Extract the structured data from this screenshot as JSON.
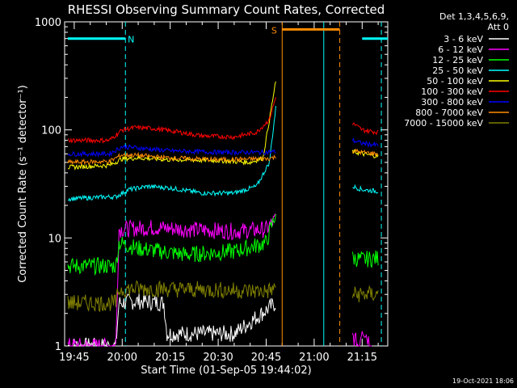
{
  "chart_data": {
    "type": "line",
    "title": "RHESSI Observing Summary Count Rates, Corrected",
    "xlabel": "Start Time (01-Sep-05 19:44:02)",
    "ylabel": "Corrected Count Rate (s⁻¹ detector⁻¹)",
    "yscale": "log",
    "ylim": [
      1,
      1000
    ],
    "xlim": [
      "19:42",
      "21:23"
    ],
    "x_ticks": [
      "19:45",
      "20:00",
      "20:15",
      "20:30",
      "20:45",
      "21:00",
      "21:15"
    ],
    "y_ticks": [
      "1",
      "10",
      "100",
      "1000"
    ],
    "legend_header": [
      "Det 1,3,4,5,6,9,",
      "Att 0"
    ],
    "legend_position": "right",
    "timestamp": "19-Oct-2021 18:06",
    "series": [
      {
        "name": "3 - 6 keV",
        "color": "#ffffff",
        "x": [
          "19:43",
          "19:58",
          "19:59",
          "20:05",
          "20:13",
          "20:14",
          "20:35",
          "20:48"
        ],
        "y": [
          1,
          1,
          2.5,
          2.6,
          2.5,
          1.3,
          1.3,
          2.5
        ]
      },
      {
        "name": "6 - 12 keV",
        "color": "#ff00ff",
        "x": [
          "19:43",
          "19:58",
          "19:59",
          "20:10",
          "20:20",
          "20:35",
          "20:45",
          "20:48",
          "21:14",
          "21:15",
          "21:18"
        ],
        "y": [
          1,
          1,
          12,
          12.5,
          12,
          11.5,
          12,
          15,
          1,
          1.5,
          1
        ]
      },
      {
        "name": "12 - 25 keV",
        "color": "#00ff00",
        "x": [
          "19:43",
          "19:58",
          "19:59",
          "20:05",
          "20:20",
          "20:35",
          "20:45",
          "20:48",
          "21:12",
          "21:15",
          "21:20"
        ],
        "y": [
          5.5,
          5.5,
          9,
          8,
          7,
          7.5,
          9,
          17,
          6.5,
          6.3,
          6.5
        ]
      },
      {
        "name": "25 - 50 keV",
        "color": "#00ffff",
        "x": [
          "19:43",
          "19:56",
          "19:58",
          "20:02",
          "20:08",
          "20:15",
          "20:25",
          "20:35",
          "20:42",
          "20:46",
          "20:48",
          "21:12",
          "21:15",
          "21:20"
        ],
        "y": [
          23,
          24,
          24,
          28,
          30,
          29,
          26,
          26,
          30,
          50,
          160,
          30,
          28,
          27
        ]
      },
      {
        "name": "50 - 100 keV",
        "color": "#ffff00",
        "x": [
          "19:43",
          "19:56",
          "20:00",
          "20:05",
          "20:15",
          "20:30",
          "20:40",
          "20:44",
          "20:48",
          "21:12",
          "21:15",
          "21:20"
        ],
        "y": [
          45,
          47,
          54,
          55,
          53,
          52,
          50,
          55,
          280,
          63,
          60,
          57
        ]
      },
      {
        "name": "100 - 300 keV",
        "color": "#ff0000",
        "x": [
          "19:43",
          "19:56",
          "20:00",
          "20:04",
          "20:10",
          "20:18",
          "20:25",
          "20:35",
          "20:42",
          "20:46",
          "20:48",
          "21:12",
          "21:15",
          "21:20"
        ],
        "y": [
          80,
          80,
          100,
          105,
          103,
          95,
          88,
          86,
          95,
          125,
          200,
          115,
          100,
          95
        ]
      },
      {
        "name": "300 - 800 keV",
        "color": "#0000ff",
        "x": [
          "19:43",
          "19:56",
          "20:00",
          "20:05",
          "20:15",
          "20:30",
          "20:45",
          "20:48",
          "21:12",
          "21:15",
          "21:20"
        ],
        "y": [
          60,
          60,
          70,
          68,
          64,
          62,
          62,
          63,
          80,
          75,
          72
        ]
      },
      {
        "name": "800 - 7000 keV",
        "color": "#ff8c00",
        "x": [
          "19:43",
          "19:56",
          "20:00",
          "20:05",
          "20:15",
          "20:30",
          "20:45",
          "20:48",
          "21:12",
          "21:15",
          "21:20"
        ],
        "y": [
          50,
          51,
          59,
          58,
          55,
          53,
          54,
          56,
          64,
          62,
          60
        ]
      },
      {
        "name": "7000 - 15000 keV",
        "color": "#808000",
        "x": [
          "19:43",
          "19:58",
          "19:59",
          "20:05",
          "20:30",
          "20:45",
          "20:48",
          "21:12",
          "21:15",
          "21:20"
        ],
        "y": [
          2.5,
          2.5,
          3.3,
          3.4,
          3.3,
          3.2,
          3.4,
          3,
          3,
          3
        ]
      }
    ],
    "annotations": [
      {
        "label": "N",
        "color": "#00ffff",
        "from": "19:43",
        "to": "20:01",
        "y": 700
      },
      {
        "label": "S",
        "color": "#ff8c00",
        "from": "20:50",
        "to": "21:08",
        "y": 850
      },
      {
        "label": "",
        "color": "#00ffff",
        "from": "21:15",
        "to": "21:23",
        "y": 700
      }
    ],
    "vlines": [
      {
        "x": "20:01",
        "color": "#00ffff",
        "style": "dashed"
      },
      {
        "x": "20:50",
        "color": "#ff8c00",
        "style": "solid"
      },
      {
        "x": "21:03",
        "color": "#00ffff",
        "style": "solid"
      },
      {
        "x": "21:08",
        "color": "#ff8c00",
        "style": "dashed"
      },
      {
        "x": "21:21",
        "color": "#00ffff",
        "style": "dashed"
      }
    ],
    "gap": [
      "20:48",
      "21:12"
    ]
  }
}
